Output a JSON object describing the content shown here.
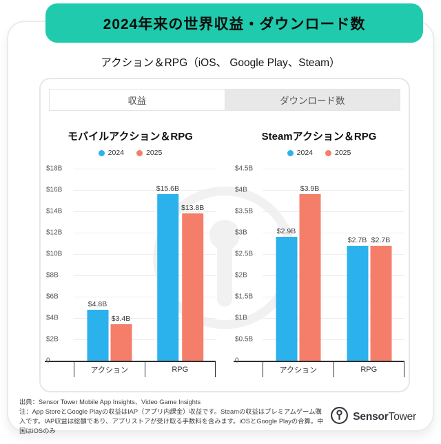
{
  "banner": {
    "title": "2024年来の世界収益・ダウンロード数",
    "bg_color": "#1FCBAC"
  },
  "subtitle": "アクション＆RPG（iOS、 Google Play、Steam）",
  "tabs": [
    {
      "label": "収益",
      "active": true
    },
    {
      "label": "ダウンロード数",
      "active": false
    }
  ],
  "colors": {
    "series_2024": "#2BB2EC",
    "series_2025": "#F57E6B",
    "banner_teal": "#1FCBAC",
    "axis": "#2e2e2e"
  },
  "chart_data": [
    {
      "type": "bar",
      "title": "モバイルアクション＆RPG",
      "categories": [
        "アクション",
        "RPG"
      ],
      "series": [
        {
          "name": "2024",
          "color": "#2BB2EC",
          "values": [
            4.8,
            15.6
          ],
          "labels": [
            "$4.8B",
            "$15.6B"
          ]
        },
        {
          "name": "2025",
          "color": "#F57E6B",
          "values": [
            3.4,
            13.8
          ],
          "labels": [
            "$3.4B",
            "$13.8B"
          ]
        }
      ],
      "ylim": [
        0,
        18
      ],
      "yticks": [
        "$18B",
        "$16B",
        "$14B",
        "$12B",
        "$10B",
        "$8B",
        "$6B",
        "$4B",
        "$2B",
        "0"
      ],
      "grid": true,
      "legend_position": "top"
    },
    {
      "type": "bar",
      "title": "Steamアクション＆RPG",
      "categories": [
        "アクション",
        "RPG"
      ],
      "series": [
        {
          "name": "2024",
          "color": "#2BB2EC",
          "values": [
            2.9,
            2.7
          ],
          "labels": [
            "$2.9B",
            "$2.7B"
          ]
        },
        {
          "name": "2025",
          "color": "#F57E6B",
          "values": [
            3.9,
            2.7
          ],
          "labels": [
            "$3.9B",
            "$2.7B"
          ]
        }
      ],
      "ylim": [
        0,
        4.5
      ],
      "yticks": [
        "$4.5B",
        "$4B",
        "$3.5B",
        "$3B",
        "$2.5B",
        "$2B",
        "$1.5B",
        "$1B",
        "$0.5B",
        "0"
      ],
      "grid": true,
      "legend_position": "top"
    }
  ],
  "footer": {
    "source": "出典：Sensor Tower Mobile App Insights、Video Game Insights",
    "note": "注：App StoreとGoogle Playの収益はIAP（アプリ内課金）収益です。Steamの収益はプレミアムゲーム購入です。IAP収益は総額であり、アプリストアが受け取る手数料を含みます。iOSとGoogle Playの合算。中国はiOSのみ",
    "logo_bold": "Sensor",
    "logo_regular": "Tower"
  }
}
